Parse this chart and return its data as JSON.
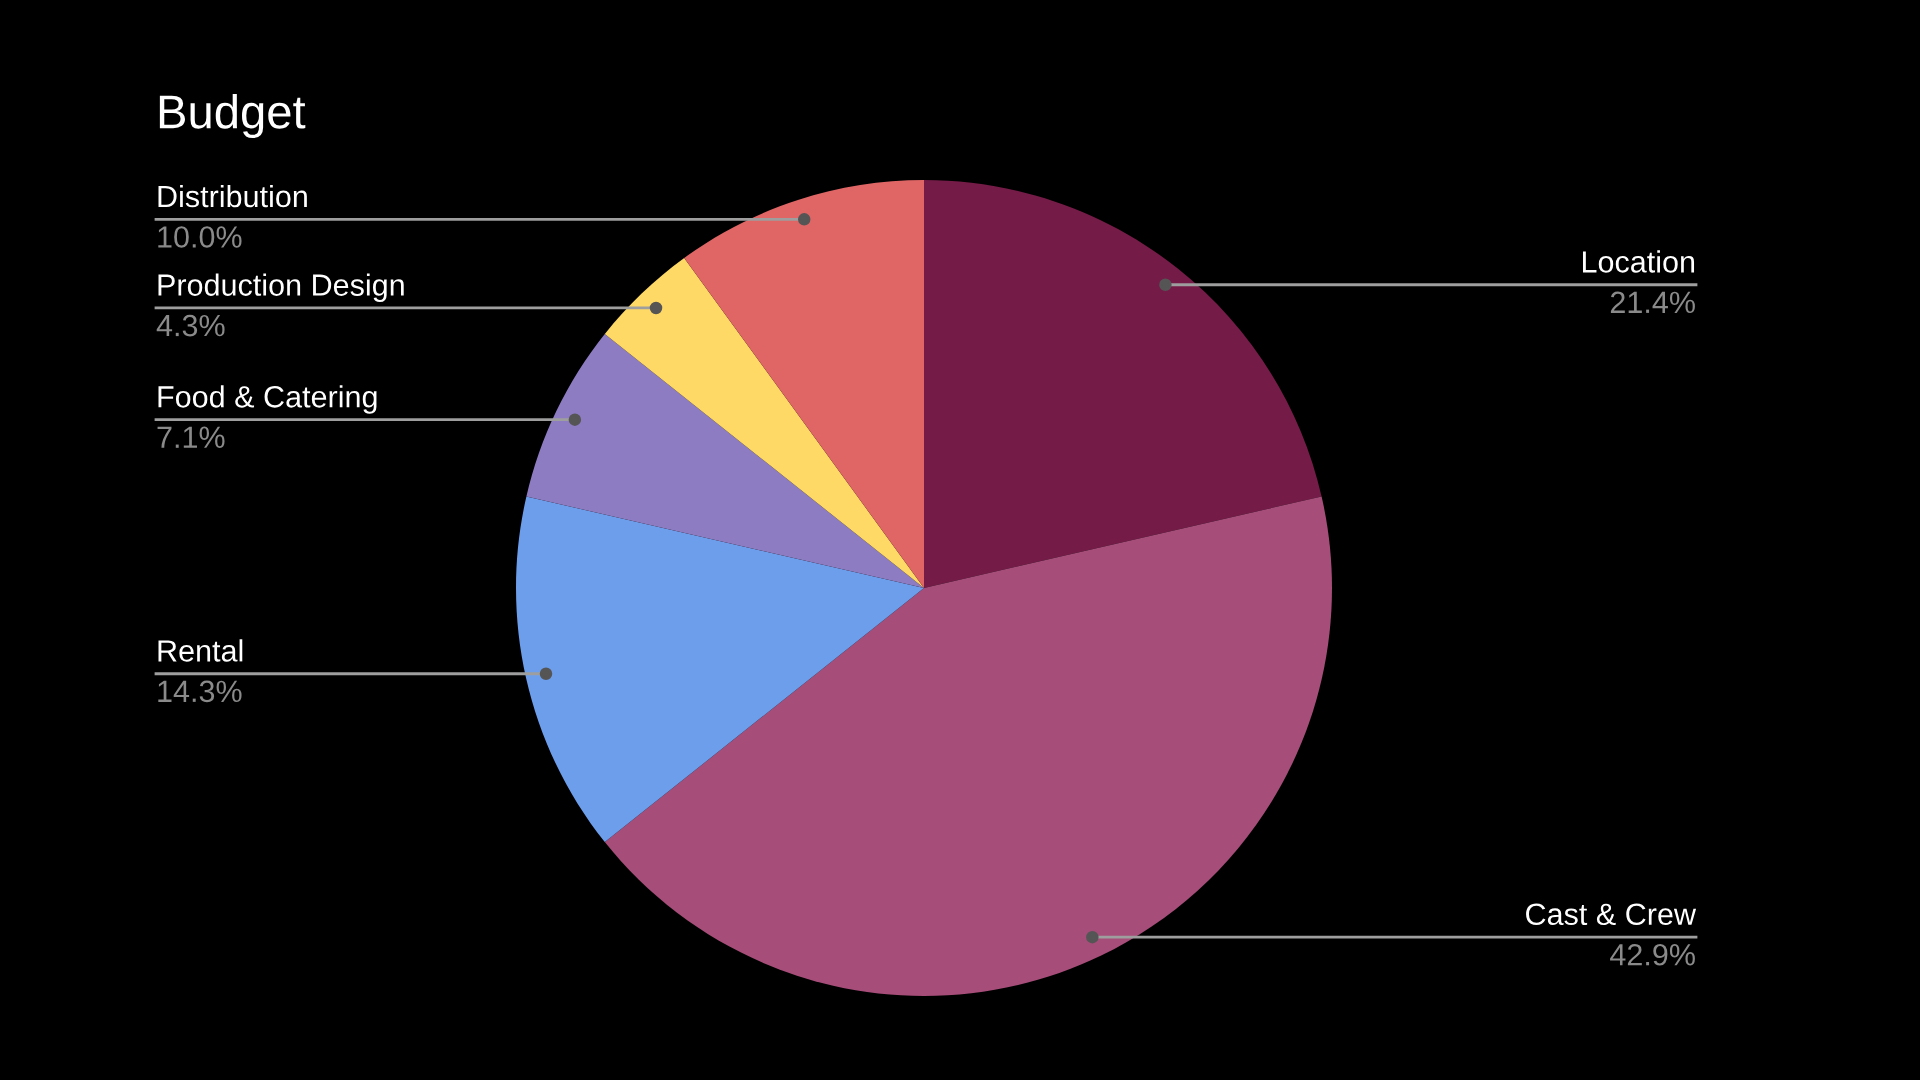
{
  "chart_data": {
    "type": "pie",
    "title": "Budget",
    "categories": [
      "Location",
      "Cast & Crew",
      "Rental",
      "Food & Catering",
      "Production Design",
      "Distribution"
    ],
    "values": [
      21.4,
      42.9,
      14.3,
      7.1,
      4.3,
      10.0
    ],
    "value_labels": [
      "21.4%",
      "42.9%",
      "14.3%",
      "7.1%",
      "4.3%",
      "10.0%"
    ],
    "colors": [
      "#741b47",
      "#a64d79",
      "#6d9eeb",
      "#8e7cc3",
      "#ffd966",
      "#e06666"
    ],
    "legend": false
  }
}
